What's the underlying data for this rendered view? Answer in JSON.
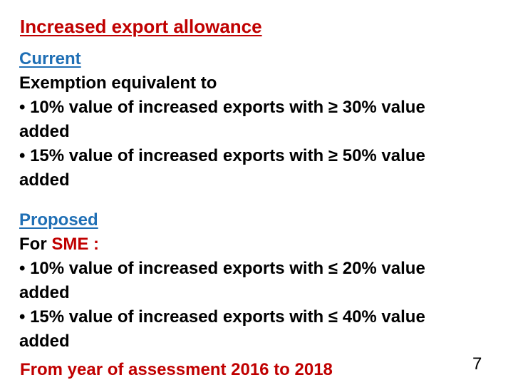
{
  "slide": {
    "title": "Increased export allowance",
    "current": {
      "heading": "Current",
      "intro": "Exemption equivalent to",
      "bullets": [
        {
          "line1": "• 10% value of increased exports with ≥ 30% value",
          "line2": "added"
        },
        {
          "line1": "• 15% value of increased exports with ≥  50% value",
          "line2": "added"
        }
      ]
    },
    "proposed": {
      "heading": "Proposed",
      "for_prefix": "For ",
      "for_target": "SME :",
      "bullets": [
        {
          "line1": "• 10% value of increased exports with ≤ 20% value",
          "line2": "added"
        },
        {
          "line1": "• 15% value of increased exports with ≤ 40% value",
          "line2": "added"
        }
      ]
    },
    "footer": "From year of assessment 2016 to 2018",
    "page_number": "7"
  },
  "colors": {
    "accent_red": "#c00000",
    "accent_blue": "#1f6fb5",
    "text": "#000000"
  }
}
